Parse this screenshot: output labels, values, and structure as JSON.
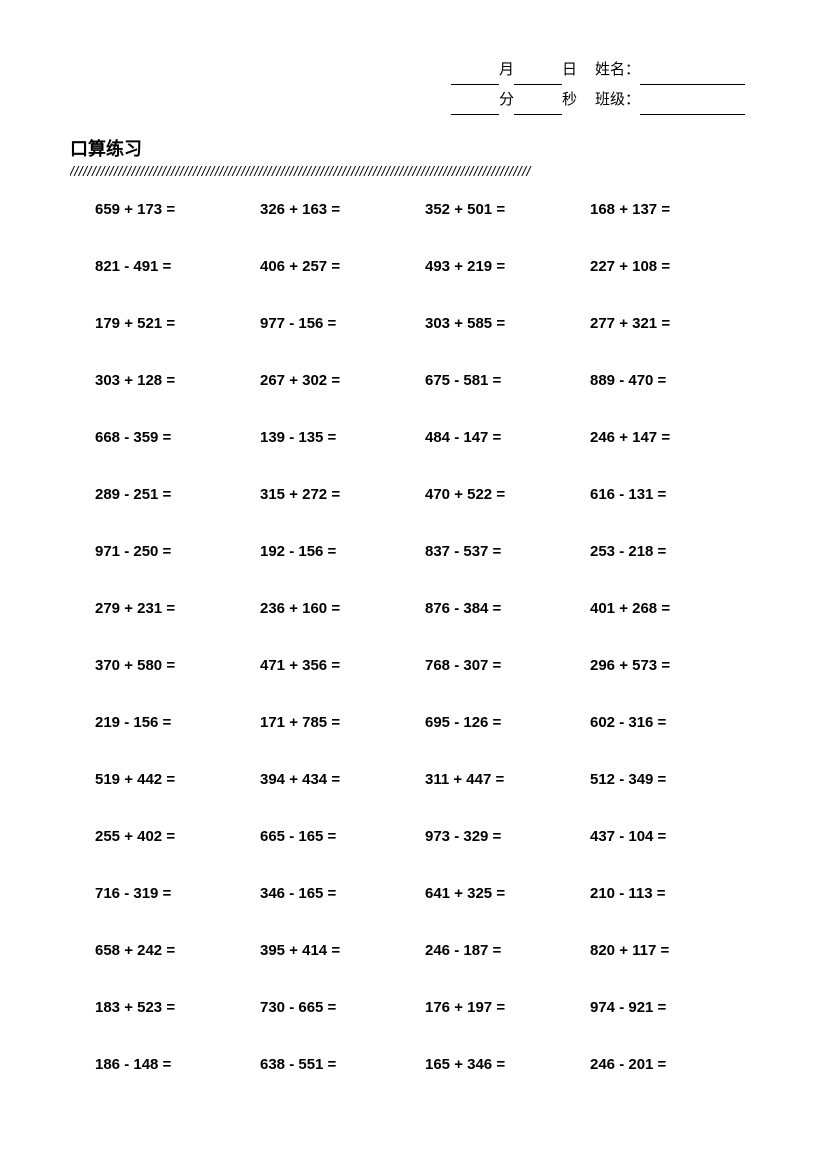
{
  "header": {
    "month_label": "月",
    "day_label": "日",
    "name_label": "姓名：",
    "minute_label": "分",
    "second_label": "秒",
    "class_label": "班级："
  },
  "title": "口算练习",
  "divider": "/////////////////////////////////////////////////////////////////////////////////////////////////////////",
  "problems": [
    [
      "659 + 173 =",
      "326 + 163 =",
      "352 + 501 =",
      "168 + 137 ="
    ],
    [
      "821 - 491 =",
      "406 + 257 =",
      "493 + 219 =",
      "227 + 108 ="
    ],
    [
      "179 + 521 =",
      "977 - 156 =",
      "303 + 585 =",
      "277 + 321 ="
    ],
    [
      "303 + 128 =",
      "267 + 302 =",
      "675 - 581 =",
      "889 - 470 ="
    ],
    [
      "668 - 359 =",
      "139 - 135 =",
      "484 - 147 =",
      "246 + 147 ="
    ],
    [
      "289 - 251 =",
      "315 + 272 =",
      "470 + 522 =",
      "616 - 131 ="
    ],
    [
      "971 - 250 =",
      "192 - 156 =",
      "837 - 537 =",
      "253 - 218 ="
    ],
    [
      "279 + 231 =",
      "236 + 160 =",
      "876 - 384 =",
      "401 + 268 ="
    ],
    [
      "370 + 580 =",
      "471 + 356 =",
      "768 - 307 =",
      "296 + 573 ="
    ],
    [
      "219 - 156 =",
      "171 + 785 =",
      "695 - 126 =",
      "602 - 316 ="
    ],
    [
      "519 + 442 =",
      "394 + 434 =",
      "311 + 447 =",
      "512 - 349 ="
    ],
    [
      "255 + 402 =",
      "665 - 165 =",
      "973 - 329 =",
      "437 - 104 ="
    ],
    [
      "716 - 319 =",
      "346 - 165 =",
      "641 + 325 =",
      "210 - 113 ="
    ],
    [
      "658 + 242 =",
      "395 + 414 =",
      "246 - 187 =",
      "820 + 117 ="
    ],
    [
      "183 + 523 =",
      "730 - 665 =",
      "176 + 197 =",
      "974 - 921 ="
    ],
    [
      "186 - 148 =",
      "638 - 551 =",
      "165 + 346 =",
      "246 - 201 ="
    ]
  ]
}
